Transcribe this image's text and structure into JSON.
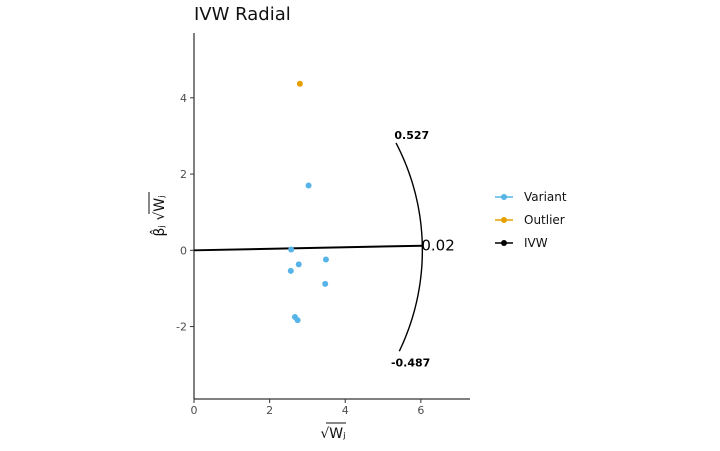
{
  "chart_data": {
    "type": "scatter",
    "title": "IVW Radial",
    "xlabel": "√Wⱼ",
    "ylabel": "β̂ⱼ √Wⱼ",
    "xlim": [
      0,
      7.3
    ],
    "ylim": [
      -3.9,
      5.7
    ],
    "x_ticks": [
      0,
      2,
      4,
      6
    ],
    "x_tick_labels": [
      "0",
      "2",
      "4",
      "6"
    ],
    "y_ticks": [
      4,
      2,
      0,
      -2
    ],
    "y_tick_labels": [
      "4",
      "2",
      "0",
      "-2"
    ],
    "grid": false,
    "legend_position": "right",
    "series": [
      {
        "name": "Variant",
        "color": "#56B4E9",
        "points": [
          {
            "x": 3.03,
            "y": 1.7
          },
          {
            "x": 2.57,
            "y": 0.02
          },
          {
            "x": 2.77,
            "y": -0.37
          },
          {
            "x": 2.56,
            "y": -0.54
          },
          {
            "x": 3.49,
            "y": -0.24
          },
          {
            "x": 3.47,
            "y": -0.88
          },
          {
            "x": 2.67,
            "y": -1.75
          },
          {
            "x": 2.74,
            "y": -1.83
          }
        ]
      },
      {
        "name": "Outlier",
        "color": "#E69F00",
        "points": [
          {
            "x": 2.8,
            "y": 4.37
          }
        ]
      },
      {
        "name": "IVW",
        "color": "#000000",
        "line": {
          "slope": 0.02,
          "x_end": 6.04
        }
      }
    ],
    "arc": {
      "radius": 6.04,
      "upper_slope": 0.527,
      "lower_slope": -0.487
    },
    "annotations": [
      {
        "label": "0.527",
        "x": 5.76,
        "y": 3.03
      },
      {
        "label": "0.02",
        "x": 6.04,
        "y": 0.12
      },
      {
        "label": "-0.487",
        "x": 5.73,
        "y": -2.94
      }
    ]
  }
}
